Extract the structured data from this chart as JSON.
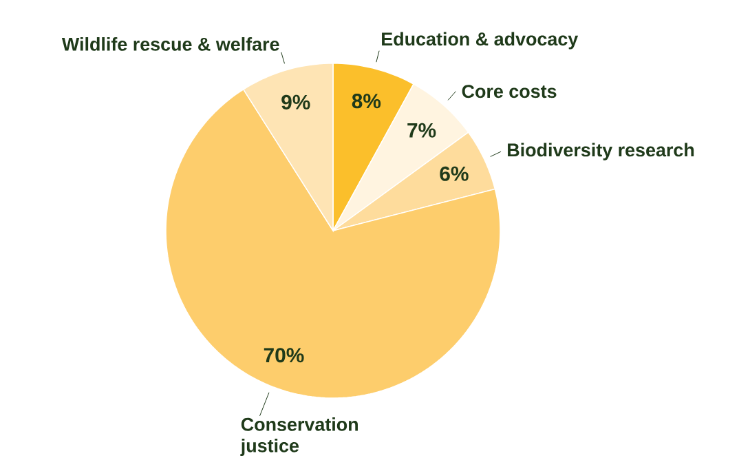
{
  "chart_data": {
    "type": "pie",
    "categories": [
      "Education & advocacy",
      "Core costs",
      "Biodiversity research",
      "Conservation justice",
      "Wildlife rescue & welfare"
    ],
    "values": [
      8,
      7,
      6,
      70,
      9
    ],
    "value_labels": [
      "8%",
      "7%",
      "6%",
      "70%",
      "9%"
    ],
    "colors": [
      "#fbbf2b",
      "#fff4e0",
      "#fedc9c",
      "#fdcd6c",
      "#fee4b4"
    ]
  }
}
